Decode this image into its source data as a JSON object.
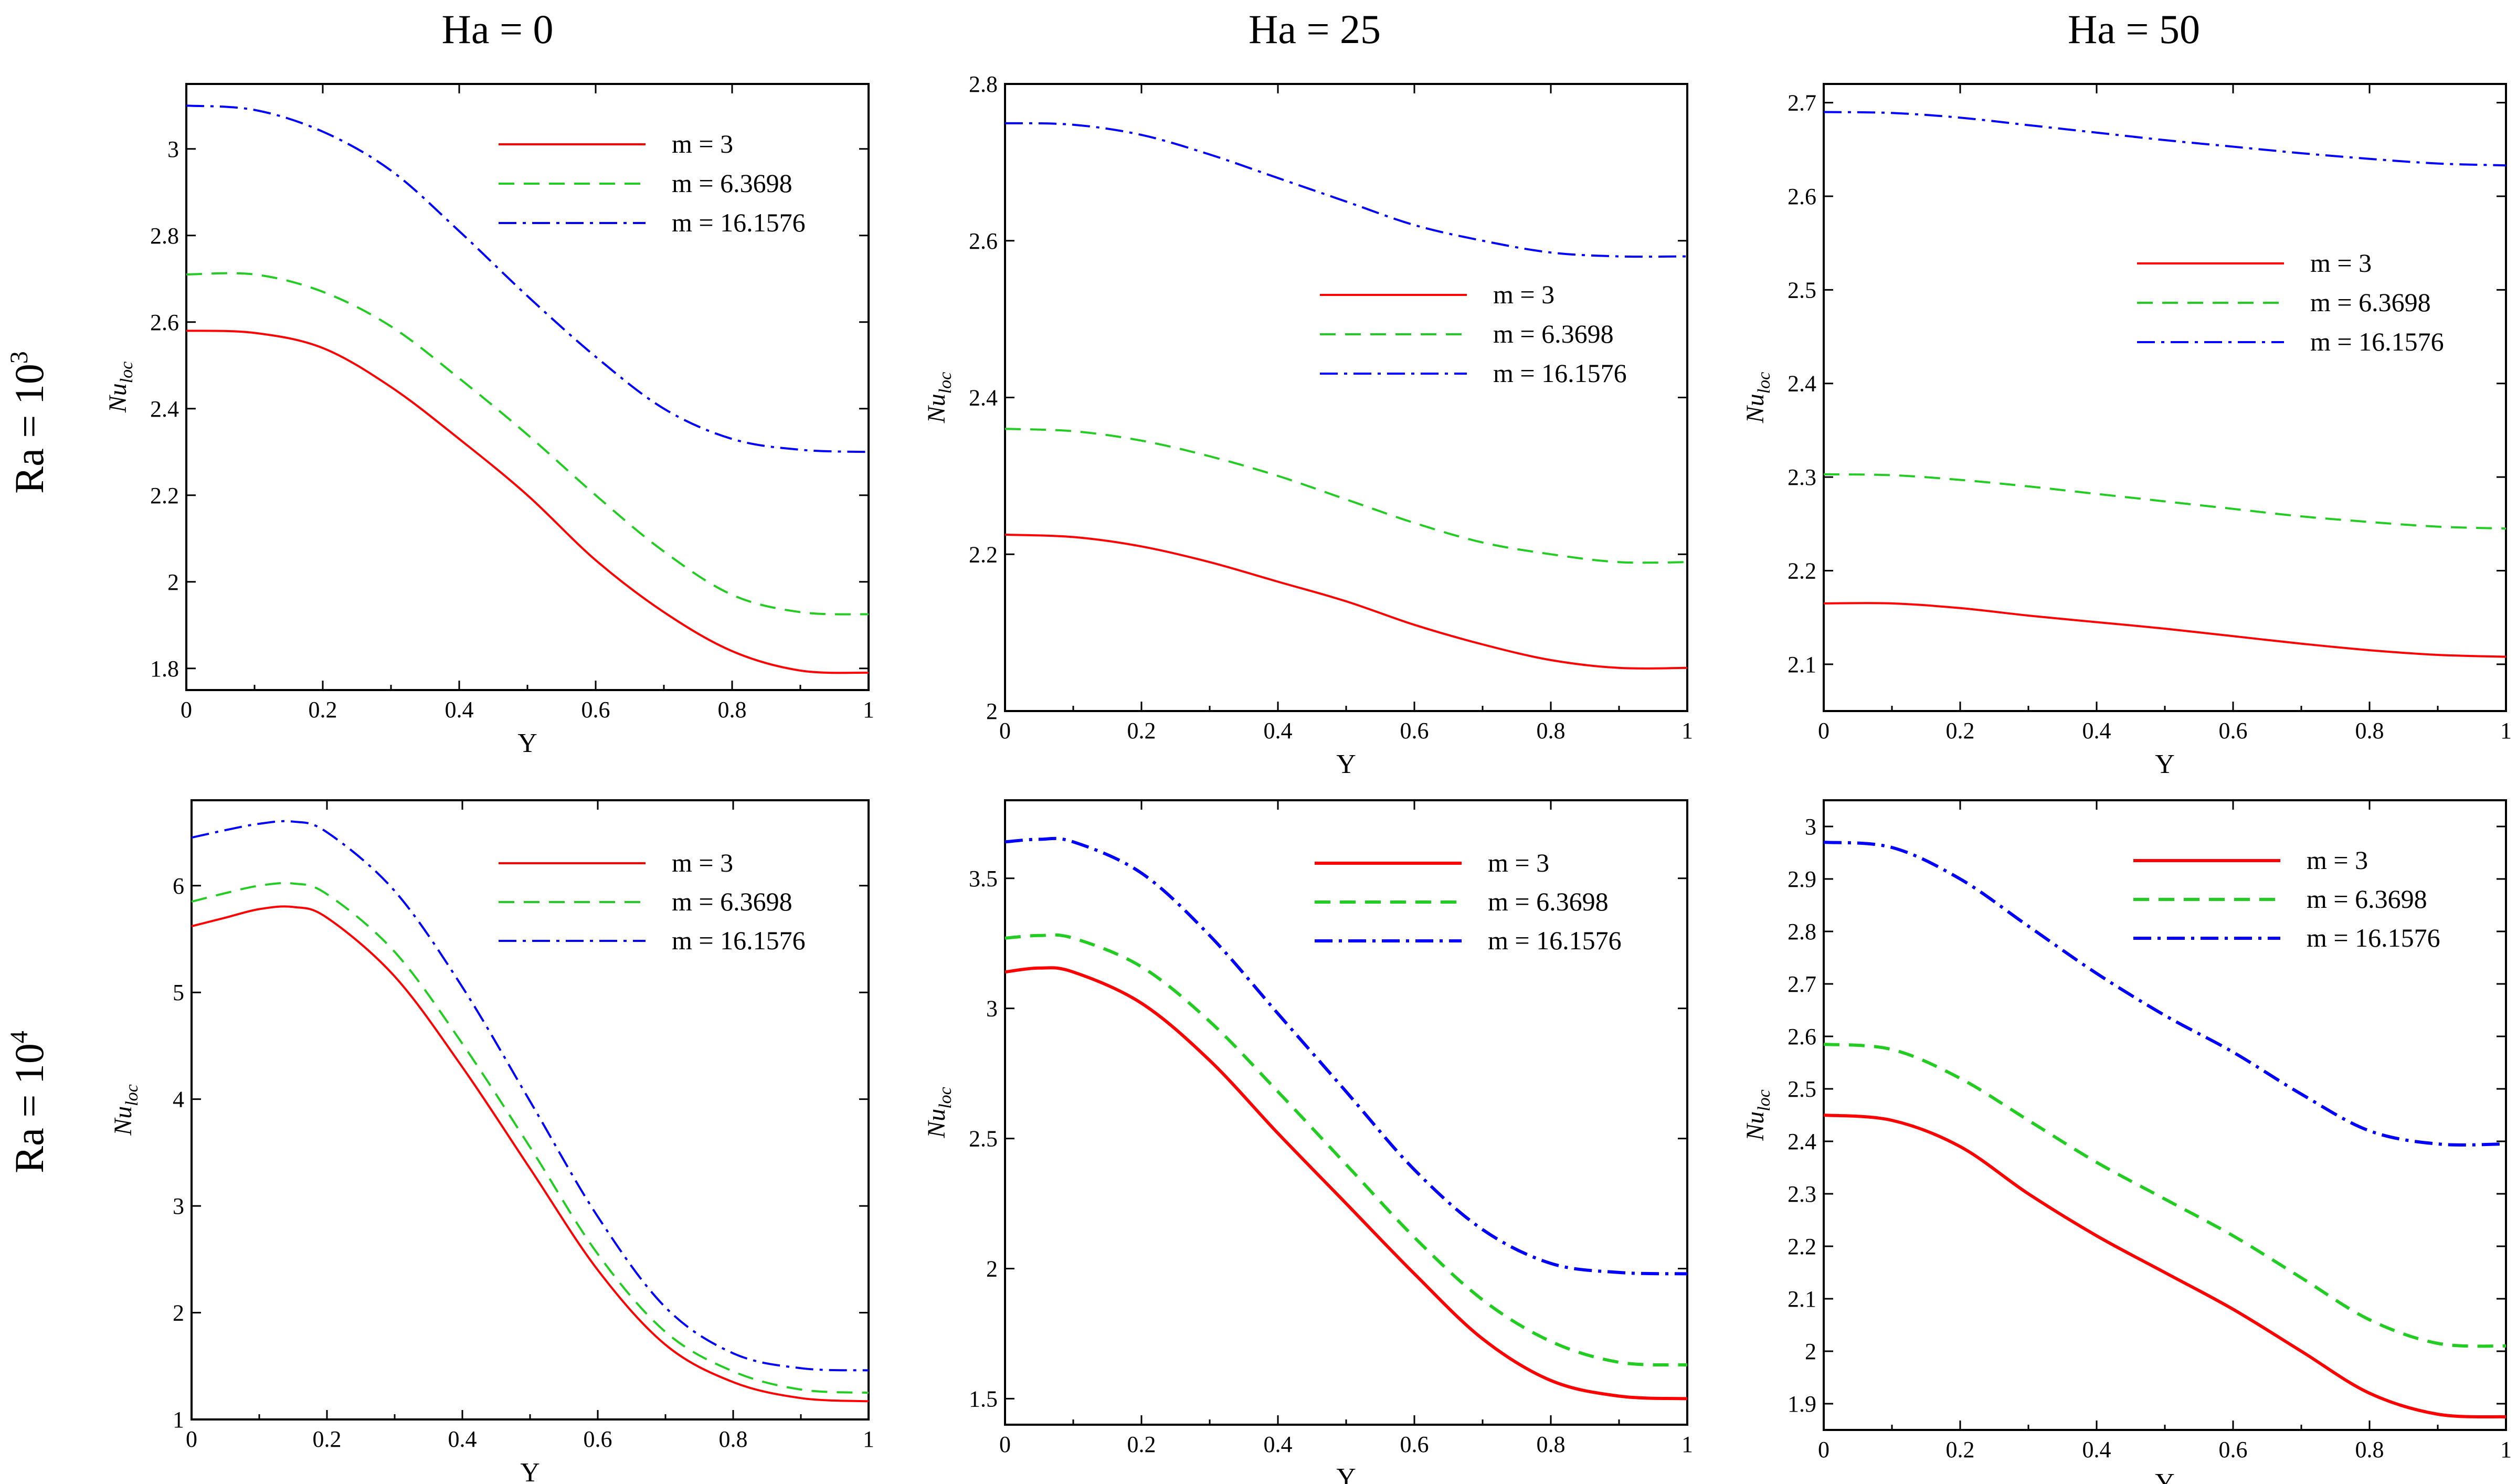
{
  "figure": {
    "column_titles": [
      "Ha = 0",
      "Ha = 25",
      "Ha = 50"
    ],
    "row_labels": [
      {
        "base": "Ra = 10",
        "exp": "3"
      },
      {
        "base": "Ra = 10",
        "exp": "4"
      }
    ],
    "colors": {
      "m3": "#ff0000",
      "m6": "#22cc22",
      "m16": "#0000ff",
      "axis": "#000000"
    }
  },
  "chart_data": [
    {
      "type": "line",
      "title": "Ha = 0, Ra = 10^3",
      "xlabel": "Y",
      "ylabel": "Nu_loc",
      "xlim": [
        0,
        1
      ],
      "ylim": [
        1.75,
        3.15
      ],
      "xticks": [
        0,
        0.2,
        0.4,
        0.6,
        0.8,
        1
      ],
      "xtick_labels": [
        "0",
        "0.2",
        "0.4",
        "0.6",
        "0.8",
        "1"
      ],
      "yticks": [
        1.8,
        2,
        2.2,
        2.4,
        2.6,
        2.8,
        3
      ],
      "ytick_labels": [
        "1.8",
        "2",
        "2.2",
        "2.4",
        "2.6",
        "2.8",
        "3"
      ],
      "legend_position": "top-right",
      "series": [
        {
          "name": "m = 3",
          "x": [
            0,
            0.1,
            0.2,
            0.3,
            0.4,
            0.5,
            0.6,
            0.7,
            0.8,
            0.9,
            1.0
          ],
          "values": [
            2.58,
            2.575,
            2.54,
            2.45,
            2.33,
            2.2,
            2.05,
            1.93,
            1.84,
            1.795,
            1.79
          ]
        },
        {
          "name": "m = 6.3698",
          "x": [
            0,
            0.1,
            0.2,
            0.3,
            0.4,
            0.5,
            0.6,
            0.7,
            0.8,
            0.9,
            1.0
          ],
          "values": [
            2.71,
            2.71,
            2.67,
            2.59,
            2.47,
            2.34,
            2.2,
            2.07,
            1.97,
            1.93,
            1.925
          ]
        },
        {
          "name": "m = 16.1576",
          "x": [
            0,
            0.1,
            0.2,
            0.3,
            0.4,
            0.5,
            0.6,
            0.7,
            0.8,
            0.9,
            1.0
          ],
          "values": [
            3.1,
            3.09,
            3.04,
            2.95,
            2.81,
            2.66,
            2.52,
            2.4,
            2.33,
            2.305,
            2.3
          ]
        }
      ]
    },
    {
      "type": "line",
      "title": "Ha = 25, Ra = 10^3",
      "xlabel": "Y",
      "ylabel": "Nu_loc",
      "xlim": [
        0,
        1
      ],
      "ylim": [
        2.0,
        2.8
      ],
      "xticks": [
        0,
        0.2,
        0.4,
        0.6,
        0.8,
        1
      ],
      "xtick_labels": [
        "0",
        "0.2",
        "0.4",
        "0.6",
        "0.8",
        "1"
      ],
      "yticks": [
        2,
        2.2,
        2.4,
        2.6,
        2.8
      ],
      "ytick_labels": [
        "2",
        "2.2",
        "2.4",
        "2.6",
        "2.8"
      ],
      "legend_position": "center-right",
      "series": [
        {
          "name": "m = 3",
          "x": [
            0,
            0.1,
            0.2,
            0.3,
            0.4,
            0.5,
            0.6,
            0.7,
            0.8,
            0.9,
            1.0
          ],
          "values": [
            2.225,
            2.222,
            2.21,
            2.19,
            2.165,
            2.14,
            2.11,
            2.085,
            2.065,
            2.055,
            2.055
          ]
        },
        {
          "name": "m = 6.3698",
          "x": [
            0,
            0.1,
            0.2,
            0.3,
            0.4,
            0.5,
            0.6,
            0.7,
            0.8,
            0.9,
            1.0
          ],
          "values": [
            2.36,
            2.357,
            2.345,
            2.325,
            2.3,
            2.27,
            2.24,
            2.215,
            2.2,
            2.19,
            2.19
          ]
        },
        {
          "name": "m = 16.1576",
          "x": [
            0,
            0.1,
            0.2,
            0.3,
            0.4,
            0.5,
            0.6,
            0.7,
            0.8,
            0.9,
            1.0
          ],
          "values": [
            2.75,
            2.748,
            2.735,
            2.71,
            2.68,
            2.65,
            2.62,
            2.6,
            2.585,
            2.58,
            2.58
          ]
        }
      ]
    },
    {
      "type": "line",
      "title": "Ha = 50, Ra = 10^3",
      "xlabel": "Y",
      "ylabel": "Nu_loc",
      "xlim": [
        0,
        1
      ],
      "ylim": [
        2.05,
        2.72
      ],
      "xticks": [
        0,
        0.2,
        0.4,
        0.6,
        0.8,
        1
      ],
      "xtick_labels": [
        "0",
        "0.2",
        "0.4",
        "0.6",
        "0.8",
        "1"
      ],
      "yticks": [
        2.1,
        2.2,
        2.3,
        2.4,
        2.5,
        2.6,
        2.7
      ],
      "ytick_labels": [
        "2.1",
        "2.2",
        "2.3",
        "2.4",
        "2.5",
        "2.6",
        "2.7"
      ],
      "legend_position": "center-right",
      "series": [
        {
          "name": "m = 3",
          "x": [
            0,
            0.1,
            0.2,
            0.3,
            0.4,
            0.5,
            0.6,
            0.7,
            0.8,
            0.9,
            1.0
          ],
          "values": [
            2.165,
            2.165,
            2.16,
            2.152,
            2.145,
            2.138,
            2.13,
            2.122,
            2.115,
            2.11,
            2.108
          ]
        },
        {
          "name": "m = 6.3698",
          "x": [
            0,
            0.1,
            0.2,
            0.3,
            0.4,
            0.5,
            0.6,
            0.7,
            0.8,
            0.9,
            1.0
          ],
          "values": [
            2.303,
            2.302,
            2.297,
            2.29,
            2.282,
            2.274,
            2.266,
            2.258,
            2.252,
            2.247,
            2.245
          ]
        },
        {
          "name": "m = 16.1576",
          "x": [
            0,
            0.1,
            0.2,
            0.3,
            0.4,
            0.5,
            0.6,
            0.7,
            0.8,
            0.9,
            1.0
          ],
          "values": [
            2.69,
            2.689,
            2.684,
            2.676,
            2.668,
            2.66,
            2.653,
            2.646,
            2.64,
            2.635,
            2.633
          ]
        }
      ]
    },
    {
      "type": "line",
      "title": "Ha = 0, Ra = 10^4",
      "xlabel": "Y",
      "ylabel": "Nu_loc",
      "xlim": [
        0,
        1
      ],
      "ylim": [
        1,
        6.8
      ],
      "xticks": [
        0,
        0.2,
        0.4,
        0.6,
        0.8,
        1
      ],
      "xtick_labels": [
        "0",
        "0.2",
        "0.4",
        "0.6",
        "0.8",
        "1"
      ],
      "yticks": [
        1,
        2,
        3,
        4,
        5,
        6
      ],
      "ytick_labels": [
        "1",
        "2",
        "3",
        "4",
        "5",
        "6"
      ],
      "legend_position": "top-right",
      "series": [
        {
          "name": "m = 3",
          "x": [
            0,
            0.05,
            0.1,
            0.15,
            0.2,
            0.3,
            0.4,
            0.5,
            0.6,
            0.7,
            0.8,
            0.9,
            1.0
          ],
          "values": [
            5.62,
            5.7,
            5.78,
            5.8,
            5.7,
            5.15,
            4.3,
            3.35,
            2.4,
            1.7,
            1.35,
            1.2,
            1.17
          ]
        },
        {
          "name": "m = 6.3698",
          "x": [
            0,
            0.05,
            0.1,
            0.15,
            0.2,
            0.3,
            0.4,
            0.5,
            0.6,
            0.7,
            0.8,
            0.9,
            1.0
          ],
          "values": [
            5.85,
            5.93,
            6.0,
            6.02,
            5.92,
            5.38,
            4.52,
            3.55,
            2.55,
            1.82,
            1.45,
            1.28,
            1.25
          ]
        },
        {
          "name": "m = 16.1576",
          "x": [
            0,
            0.05,
            0.1,
            0.15,
            0.2,
            0.3,
            0.4,
            0.5,
            0.6,
            0.7,
            0.8,
            0.9,
            1.0
          ],
          "values": [
            6.45,
            6.52,
            6.58,
            6.6,
            6.5,
            5.95,
            5.05,
            3.98,
            2.9,
            2.05,
            1.62,
            1.48,
            1.46
          ]
        }
      ]
    },
    {
      "type": "line",
      "title": "Ha = 25, Ra = 10^4",
      "xlabel": "Y",
      "ylabel": "Nu_loc",
      "xlim": [
        0,
        1
      ],
      "ylim": [
        1.4,
        3.8
      ],
      "xticks": [
        0,
        0.2,
        0.4,
        0.6,
        0.8,
        1
      ],
      "xtick_labels": [
        "0",
        "0.2",
        "0.4",
        "0.6",
        "0.8",
        "1"
      ],
      "yticks": [
        1.5,
        2,
        2.5,
        3,
        3.5
      ],
      "ytick_labels": [
        "1.5",
        "2",
        "2.5",
        "3",
        "3.5"
      ],
      "legend_position": "top-right",
      "series": [
        {
          "name": "m = 3",
          "x": [
            0,
            0.05,
            0.1,
            0.2,
            0.3,
            0.4,
            0.5,
            0.6,
            0.7,
            0.8,
            0.9,
            1.0
          ],
          "values": [
            3.14,
            3.155,
            3.14,
            3.02,
            2.8,
            2.52,
            2.25,
            1.98,
            1.73,
            1.57,
            1.51,
            1.5
          ]
        },
        {
          "name": "m = 6.3698",
          "x": [
            0,
            0.05,
            0.1,
            0.2,
            0.3,
            0.4,
            0.5,
            0.6,
            0.7,
            0.8,
            0.9,
            1.0
          ],
          "values": [
            3.27,
            3.28,
            3.27,
            3.16,
            2.95,
            2.68,
            2.4,
            2.12,
            1.88,
            1.72,
            1.64,
            1.63
          ]
        },
        {
          "name": "m = 16.1576",
          "x": [
            0,
            0.05,
            0.1,
            0.2,
            0.3,
            0.4,
            0.5,
            0.6,
            0.7,
            0.8,
            0.9,
            1.0
          ],
          "values": [
            3.64,
            3.65,
            3.64,
            3.52,
            3.28,
            2.98,
            2.68,
            2.38,
            2.15,
            2.02,
            1.985,
            1.98
          ]
        }
      ]
    },
    {
      "type": "line",
      "title": "Ha = 50, Ra = 10^4",
      "xlabel": "Y",
      "ylabel": "Nu_loc",
      "xlim": [
        0,
        1
      ],
      "ylim": [
        1.85,
        3.05
      ],
      "xticks": [
        0,
        0.2,
        0.4,
        0.6,
        0.8,
        1
      ],
      "xtick_labels": [
        "0",
        "0.2",
        "0.4",
        "0.6",
        "0.8",
        "1"
      ],
      "yticks": [
        1.9,
        2,
        2.1,
        2.2,
        2.3,
        2.4,
        2.5,
        2.6,
        2.7,
        2.8,
        2.9,
        3
      ],
      "ytick_labels": [
        "1.9",
        "2",
        "2.1",
        "2.2",
        "2.3",
        "2.4",
        "2.5",
        "2.6",
        "2.7",
        "2.8",
        "2.9",
        "3"
      ],
      "legend_position": "top-right",
      "series": [
        {
          "name": "m = 3",
          "x": [
            0,
            0.1,
            0.2,
            0.3,
            0.4,
            0.5,
            0.6,
            0.7,
            0.8,
            0.9,
            1.0
          ],
          "values": [
            2.45,
            2.44,
            2.39,
            2.3,
            2.22,
            2.15,
            2.08,
            2.0,
            1.92,
            1.88,
            1.875
          ]
        },
        {
          "name": "m = 6.3698",
          "x": [
            0,
            0.1,
            0.2,
            0.3,
            0.4,
            0.5,
            0.6,
            0.7,
            0.8,
            0.9,
            1.0
          ],
          "values": [
            2.585,
            2.575,
            2.52,
            2.44,
            2.36,
            2.29,
            2.22,
            2.14,
            2.06,
            2.015,
            2.01
          ]
        },
        {
          "name": "m = 16.1576",
          "x": [
            0,
            0.1,
            0.2,
            0.3,
            0.4,
            0.5,
            0.6,
            0.7,
            0.8,
            0.9,
            1.0
          ],
          "values": [
            2.97,
            2.96,
            2.9,
            2.81,
            2.72,
            2.64,
            2.57,
            2.49,
            2.42,
            2.395,
            2.395
          ]
        }
      ]
    }
  ]
}
